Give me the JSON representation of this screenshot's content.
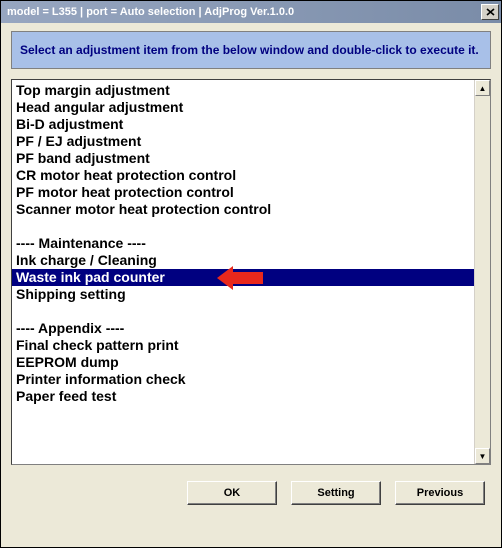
{
  "window": {
    "title": "model = L355 | port = Auto selection | AdjProg Ver.1.0.0"
  },
  "instruction": "Select an adjustment item from the below window and double-click to execute it.",
  "list": {
    "items": [
      {
        "label": "Top margin adjustment",
        "type": "item"
      },
      {
        "label": "Head angular adjustment",
        "type": "item"
      },
      {
        "label": "Bi-D adjustment",
        "type": "item"
      },
      {
        "label": "PF / EJ adjustment",
        "type": "item"
      },
      {
        "label": "PF band adjustment",
        "type": "item"
      },
      {
        "label": "CR motor heat protection control",
        "type": "item"
      },
      {
        "label": "PF motor heat protection control",
        "type": "item"
      },
      {
        "label": "Scanner motor heat protection control",
        "type": "item"
      },
      {
        "label": "",
        "type": "blank"
      },
      {
        "label": "---- Maintenance ----",
        "type": "header"
      },
      {
        "label": "Ink charge / Cleaning",
        "type": "item"
      },
      {
        "label": "Waste ink pad counter",
        "type": "item",
        "selected": true
      },
      {
        "label": "Shipping setting",
        "type": "item"
      },
      {
        "label": "",
        "type": "blank"
      },
      {
        "label": "---- Appendix ----",
        "type": "header"
      },
      {
        "label": "Final check pattern print",
        "type": "item"
      },
      {
        "label": "EEPROM dump",
        "type": "item"
      },
      {
        "label": "Printer information check",
        "type": "item"
      },
      {
        "label": "Paper feed test",
        "type": "item"
      }
    ]
  },
  "buttons": {
    "ok": "OK",
    "setting": "Setting",
    "previous": "Previous"
  },
  "colors": {
    "selected_bg": "#000080",
    "instruction_bg": "#a8c0e8",
    "arrow": "#e8281c",
    "window_bg": "#ece9d8"
  }
}
